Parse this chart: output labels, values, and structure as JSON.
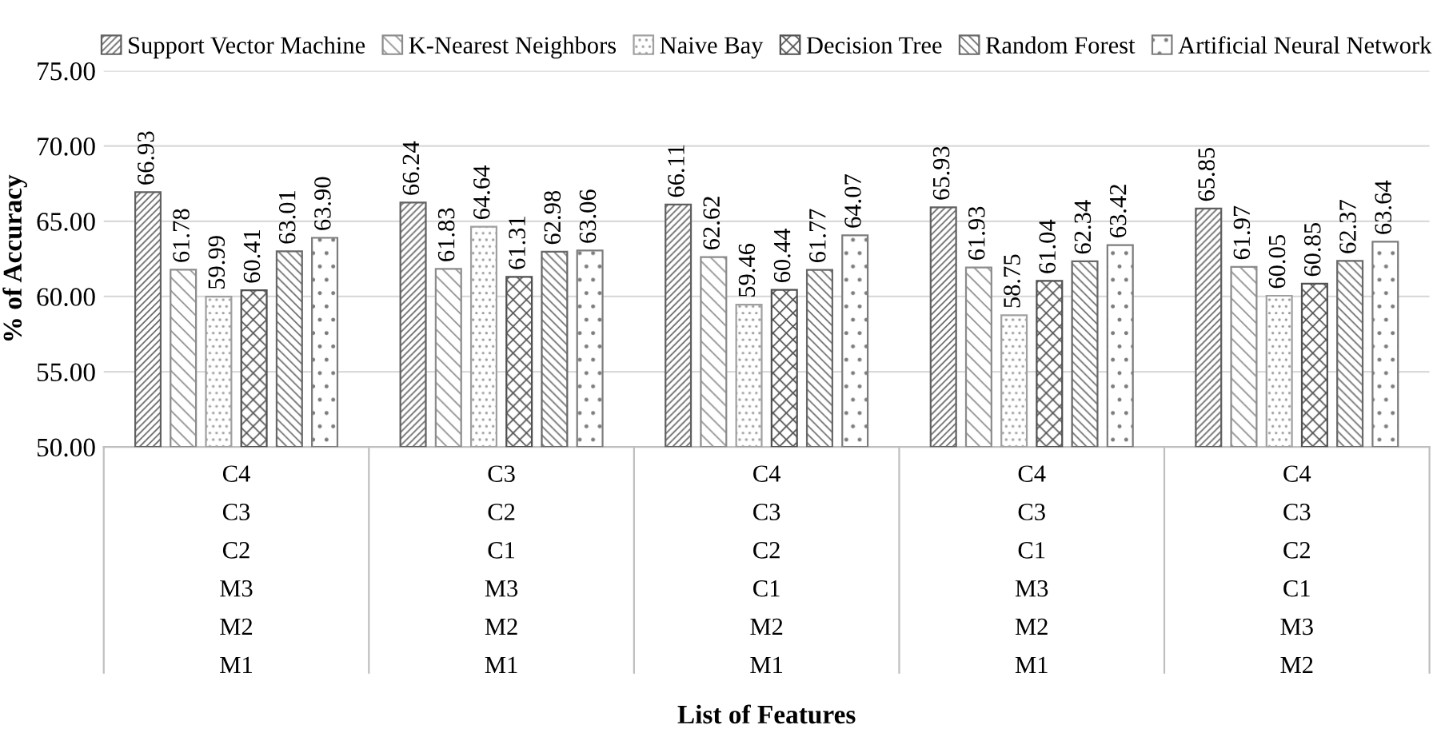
{
  "chart_data": {
    "type": "bar",
    "xlabel": "List of Features",
    "ylabel": "% of Accuracy",
    "categories": [
      "C4\nC3\nC2\nM3\nM2\nM1",
      "C3\nC2\nC1\nM3\nM2\nM1",
      "C4\nC3\nC2\nC1\nM2\nM1",
      "C4\nC3\nC1\nM3\nM2\nM1",
      "C4\nC3\nC2\nC1\nM3\nM2"
    ],
    "series": [
      {
        "name": "Support Vector Machine",
        "color": "#606060",
        "values": [
          66.93,
          66.24,
          66.11,
          65.93,
          65.85
        ],
        "value_labels": [
          "66.93",
          "66.24",
          "66.11",
          "65.93",
          "65.85"
        ]
      },
      {
        "name": "K-Nearest Neighbors",
        "color": "#8c8c8c",
        "values": [
          61.78,
          61.83,
          62.62,
          61.93,
          61.97
        ],
        "value_labels": [
          "61.78",
          "61.83",
          "62.62",
          "61.93",
          "61.97"
        ]
      },
      {
        "name": "Naive Bay",
        "color": "#a0a0a0",
        "values": [
          59.99,
          64.64,
          59.46,
          58.75,
          60.05
        ],
        "value_labels": [
          "59.99",
          "64.64",
          "59.46",
          "58.75",
          "60.05"
        ]
      },
      {
        "name": "Decision Tree",
        "color": "#505050",
        "values": [
          60.41,
          61.31,
          60.44,
          61.04,
          60.85
        ],
        "value_labels": [
          "60.41",
          "61.31",
          "60.44",
          "61.04",
          "60.85"
        ]
      },
      {
        "name": "Random Forest",
        "color": "#686868",
        "values": [
          63.01,
          62.98,
          61.77,
          62.34,
          62.37
        ],
        "value_labels": [
          "63.01",
          "62.98",
          "61.77",
          "62.34",
          "62.37"
        ]
      },
      {
        "name": "Artificial Neural Network",
        "color": "#7c7c7c",
        "values": [
          63.9,
          63.06,
          64.07,
          63.42,
          63.64
        ],
        "value_labels": [
          "63.90",
          "63.06",
          "64.07",
          "63.42",
          "63.64"
        ]
      }
    ],
    "ylim": [
      50,
      75
    ],
    "yticks": [
      {
        "value": 50,
        "label": "50.00"
      },
      {
        "value": 55,
        "label": "55.00"
      },
      {
        "value": 60,
        "label": "60.00"
      },
      {
        "value": 65,
        "label": "65.00"
      },
      {
        "value": 70,
        "label": "70.00"
      },
      {
        "value": 75,
        "label": "75.00"
      }
    ],
    "grid": "y",
    "legend": "top"
  }
}
